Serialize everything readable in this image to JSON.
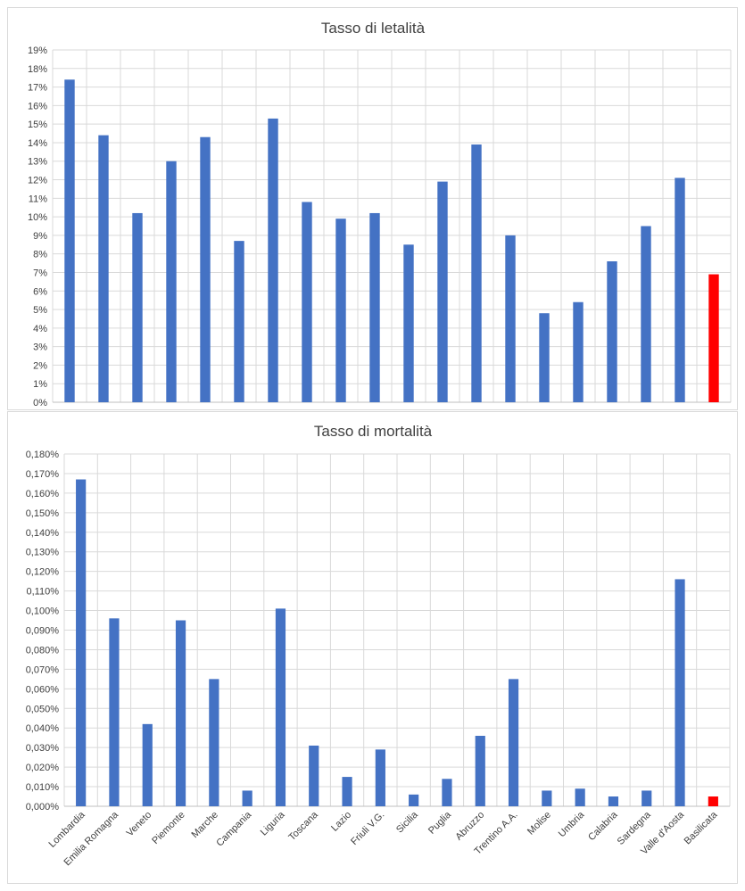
{
  "chart_data": [
    {
      "type": "bar",
      "title": "Tasso di letalità",
      "categories": [
        "Lombardia",
        "Emilia Romagna",
        "Veneto",
        "Piemonte",
        "Marche",
        "Campania",
        "Liguria",
        "Toscana",
        "Lazio",
        "Friuli V.G.",
        "Sicilia",
        "Puglia",
        "Abruzzo",
        "Trentino A.A.",
        "Molise",
        "Umbria",
        "Calabria",
        "Sardegna",
        "Valle d'Aosta",
        "Basilicata"
      ],
      "values": [
        17.4,
        14.4,
        10.2,
        13.0,
        14.3,
        8.7,
        15.3,
        10.8,
        9.9,
        10.2,
        8.5,
        11.9,
        13.9,
        9.0,
        4.8,
        5.4,
        7.6,
        9.5,
        12.1,
        6.9
      ],
      "unit": "%",
      "ylim": [
        0,
        19
      ],
      "yticks": [
        "0%",
        "1%",
        "2%",
        "3%",
        "4%",
        "5%",
        "6%",
        "7%",
        "8%",
        "9%",
        "10%",
        "11%",
        "12%",
        "13%",
        "14%",
        "15%",
        "16%",
        "17%",
        "18%",
        "19%"
      ],
      "xlabel": "",
      "ylabel": "",
      "grid": true,
      "bar_color": "#4472c4",
      "highlight_index": 19,
      "highlight_color": "#ff0000"
    },
    {
      "type": "bar",
      "title": "Tasso di mortalità",
      "categories": [
        "Lombardia",
        "Emilia Romagna",
        "Veneto",
        "Piemonte",
        "Marche",
        "Campania",
        "Liguria",
        "Toscana",
        "Lazio",
        "Friuli V.G.",
        "Sicilia",
        "Puglia",
        "Abruzzo",
        "Trentino A.A.",
        "Molise",
        "Umbria",
        "Calabria",
        "Sardegna",
        "Valle d'Aosta",
        "Basilicata"
      ],
      "values": [
        0.167,
        0.096,
        0.042,
        0.095,
        0.065,
        0.008,
        0.101,
        0.031,
        0.015,
        0.029,
        0.006,
        0.014,
        0.036,
        0.065,
        0.008,
        0.009,
        0.005,
        0.008,
        0.116,
        0.005
      ],
      "unit": "%",
      "ylim": [
        0,
        0.18
      ],
      "yticks": [
        "0,000%",
        "0,010%",
        "0,020%",
        "0,030%",
        "0,040%",
        "0,050%",
        "0,060%",
        "0,070%",
        "0,080%",
        "0,090%",
        "0,100%",
        "0,110%",
        "0,120%",
        "0,130%",
        "0,140%",
        "0,150%",
        "0,160%",
        "0,170%",
        "0,180%"
      ],
      "xlabel": "",
      "ylabel": "",
      "grid": true,
      "bar_color": "#4472c4",
      "highlight_index": 19,
      "highlight_color": "#ff0000"
    }
  ]
}
